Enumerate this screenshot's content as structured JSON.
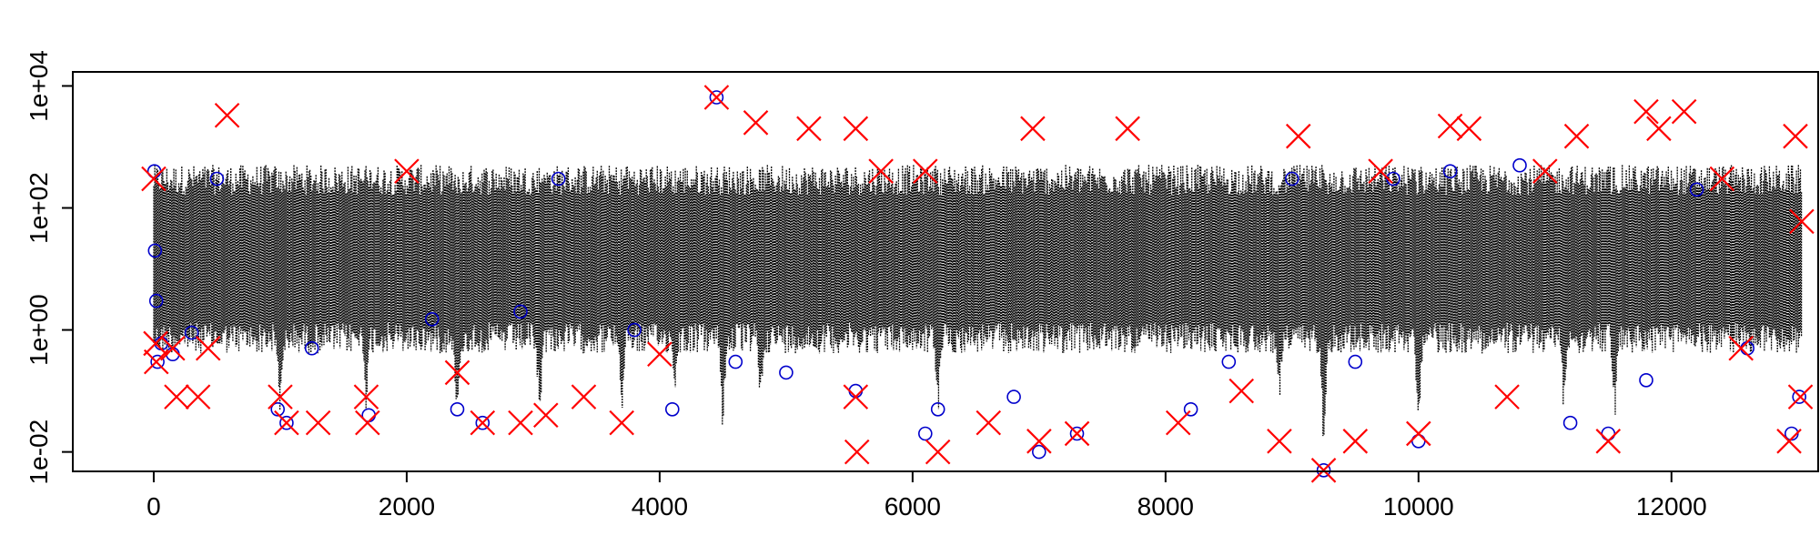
{
  "chart_data": {
    "type": "scatter",
    "title": "",
    "xlabel": "",
    "ylabel": "",
    "xlim": [
      -640,
      13160
    ],
    "ylim": [
      0.0048,
      17000
    ],
    "y_scale": "log10",
    "x_ticks": [
      0,
      2000,
      4000,
      6000,
      8000,
      10000,
      12000
    ],
    "x_tick_labels": [
      "0",
      "2000",
      "4000",
      "6000",
      "8000",
      "10000",
      "12000"
    ],
    "y_ticks": [
      0.01,
      1,
      100,
      10000
    ],
    "y_tick_labels": [
      "1e-02",
      "1e+00",
      "1e+02",
      "1e+04"
    ],
    "grid": false,
    "legend": "none",
    "series": [
      {
        "style": "dense black vertical dotted lines",
        "color": "#000000",
        "band": {
          "x_start": 0,
          "x_end": 13030,
          "typical_low": 1.3,
          "typical_high": 320
        },
        "dips": [
          {
            "x": 1000,
            "low": 0.03
          },
          {
            "x": 1680,
            "low": 0.04
          },
          {
            "x": 2400,
            "low": 0.02
          },
          {
            "x": 3050,
            "low": 0.025
          },
          {
            "x": 3700,
            "low": 0.03
          },
          {
            "x": 4120,
            "low": 0.08
          },
          {
            "x": 4500,
            "low": 0.015
          },
          {
            "x": 4800,
            "low": 0.04
          },
          {
            "x": 6200,
            "low": 0.03
          },
          {
            "x": 8900,
            "low": 0.06
          },
          {
            "x": 9250,
            "low": 0.008
          },
          {
            "x": 10000,
            "low": 0.012
          },
          {
            "x": 11150,
            "low": 0.03
          },
          {
            "x": 11550,
            "low": 0.02
          }
        ]
      },
      {
        "style": "blue open circles",
        "color": "#0000cc",
        "points": [
          [
            5,
            400
          ],
          [
            10,
            20
          ],
          [
            20,
            3
          ],
          [
            30,
            0.3
          ],
          [
            60,
            0.6
          ],
          [
            150,
            0.4
          ],
          [
            300,
            0.9
          ],
          [
            500,
            300
          ],
          [
            980,
            0.05
          ],
          [
            1050,
            0.03
          ],
          [
            1250,
            0.5
          ],
          [
            1700,
            0.04
          ],
          [
            2200,
            1.5
          ],
          [
            2400,
            0.05
          ],
          [
            2600,
            0.03
          ],
          [
            2900,
            2
          ],
          [
            3200,
            300
          ],
          [
            3800,
            1
          ],
          [
            4100,
            0.05
          ],
          [
            4450,
            6500
          ],
          [
            4600,
            0.3
          ],
          [
            5000,
            0.2
          ],
          [
            5550,
            0.1
          ],
          [
            6100,
            0.02
          ],
          [
            6200,
            0.05
          ],
          [
            6800,
            0.08
          ],
          [
            7000,
            0.01
          ],
          [
            7300,
            0.02
          ],
          [
            8200,
            0.05
          ],
          [
            8500,
            0.3
          ],
          [
            9000,
            300
          ],
          [
            9250,
            0.005
          ],
          [
            9500,
            0.3
          ],
          [
            9800,
            300
          ],
          [
            10000,
            0.015
          ],
          [
            10250,
            400
          ],
          [
            10800,
            500
          ],
          [
            11200,
            0.03
          ],
          [
            11500,
            0.02
          ],
          [
            11800,
            0.15
          ],
          [
            12200,
            200
          ],
          [
            12600,
            0.5
          ],
          [
            12950,
            0.02
          ],
          [
            13010,
            0.08
          ]
        ]
      },
      {
        "style": "red x crosses",
        "color": "#ff0000",
        "points": [
          [
            0,
            300
          ],
          [
            15,
            0.6
          ],
          [
            20,
            0.3
          ],
          [
            150,
            0.5
          ],
          [
            180,
            0.08
          ],
          [
            350,
            0.08
          ],
          [
            430,
            0.5
          ],
          [
            580,
            3300
          ],
          [
            1000,
            0.08
          ],
          [
            1050,
            0.03
          ],
          [
            1300,
            0.03
          ],
          [
            1680,
            0.08
          ],
          [
            1690,
            0.03
          ],
          [
            2000,
            400
          ],
          [
            2400,
            0.2
          ],
          [
            2600,
            0.03
          ],
          [
            2900,
            0.03
          ],
          [
            3100,
            0.04
          ],
          [
            3400,
            0.08
          ],
          [
            3700,
            0.03
          ],
          [
            4000,
            0.4
          ],
          [
            4450,
            6500
          ],
          [
            4760,
            2500
          ],
          [
            5180,
            2000
          ],
          [
            5550,
            2000
          ],
          [
            5550,
            0.08
          ],
          [
            5560,
            0.01
          ],
          [
            5750,
            400
          ],
          [
            6100,
            400
          ],
          [
            6200,
            0.01
          ],
          [
            6600,
            0.03
          ],
          [
            6950,
            2000
          ],
          [
            7000,
            0.015
          ],
          [
            7300,
            0.02
          ],
          [
            7700,
            2000
          ],
          [
            8100,
            0.03
          ],
          [
            8600,
            0.1
          ],
          [
            8900,
            0.015
          ],
          [
            9050,
            1500
          ],
          [
            9250,
            0.005
          ],
          [
            9500,
            0.015
          ],
          [
            9700,
            400
          ],
          [
            10000,
            0.02
          ],
          [
            10250,
            2200
          ],
          [
            10400,
            2000
          ],
          [
            10700,
            0.08
          ],
          [
            11000,
            400
          ],
          [
            11250,
            1500
          ],
          [
            11500,
            0.015
          ],
          [
            11800,
            3800
          ],
          [
            11900,
            2000
          ],
          [
            12100,
            3800
          ],
          [
            12400,
            300
          ],
          [
            12550,
            0.5
          ],
          [
            12930,
            0.015
          ],
          [
            12980,
            1500
          ],
          [
            13020,
            0.08
          ],
          [
            13030,
            60
          ]
        ]
      }
    ]
  }
}
